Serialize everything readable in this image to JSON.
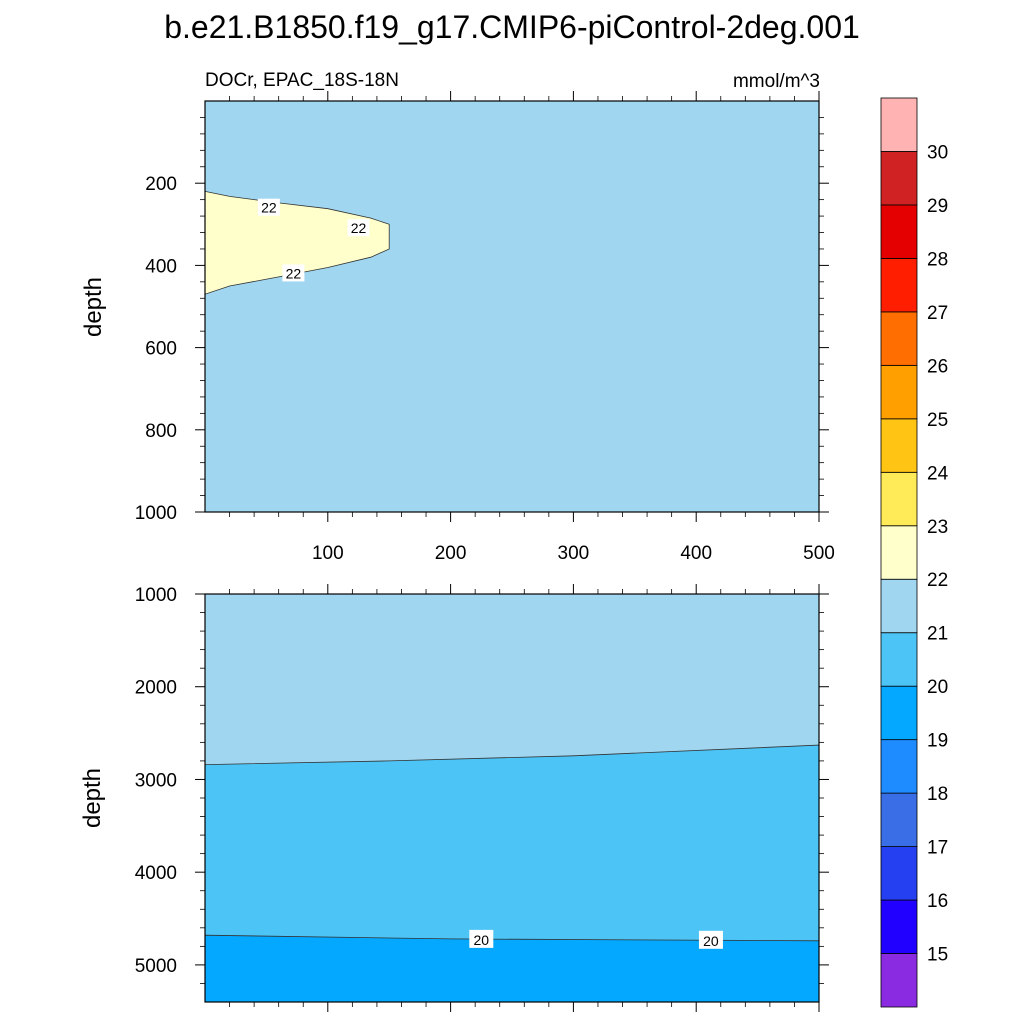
{
  "title": "b.e21.B1850.f19_g17.CMIP6-piControl-2deg.001",
  "colors": {
    "background": "#ffffff",
    "axis": "#000000"
  },
  "chart_data": [
    {
      "type": "contour",
      "panel": "upper",
      "subtitle_left": "DOCr, EPAC_18S-18N",
      "subtitle_right": "mmol/m^3",
      "xlabel": "",
      "ylabel": "depth",
      "xlim": [
        0,
        500
      ],
      "ylim": [
        1000,
        0
      ],
      "x_ticks": [
        100,
        200,
        300,
        400,
        500
      ],
      "x_tick_labels": [
        "100",
        "200",
        "300",
        "400",
        "500"
      ],
      "y_ticks": [
        200,
        400,
        600,
        800,
        1000
      ],
      "y_tick_labels": [
        "200",
        "400",
        "600",
        "800",
        "1000"
      ],
      "background_fill_range": [
        21,
        22
      ],
      "regions": [
        {
          "range": [
            22,
            23
          ],
          "description": "warm tongue near western edge",
          "boundary_top": [
            [
              0,
              220
            ],
            [
              20,
              232
            ],
            [
              60,
              248
            ],
            [
              100,
              262
            ],
            [
              135,
              285
            ],
            [
              150,
              300
            ]
          ],
          "boundary_bottom": [
            [
              150,
              360
            ],
            [
              135,
              380
            ],
            [
              100,
              405
            ],
            [
              60,
              428
            ],
            [
              20,
              450
            ],
            [
              0,
              470
            ]
          ]
        }
      ],
      "contour_labels": [
        {
          "text": "22",
          "x": 52,
          "y": 262
        },
        {
          "text": "22",
          "x": 125,
          "y": 312
        },
        {
          "text": "22",
          "x": 72,
          "y": 422
        }
      ]
    },
    {
      "type": "contour",
      "panel": "lower",
      "xlabel": "",
      "ylabel": "depth",
      "xlim": [
        0,
        500
      ],
      "ylim": [
        5400,
        1000
      ],
      "y_ticks": [
        1000,
        2000,
        3000,
        4000,
        5000
      ],
      "y_tick_labels": [
        "1000",
        "2000",
        "3000",
        "4000",
        "5000"
      ],
      "layers": [
        {
          "range": [
            21,
            22
          ],
          "top": [
            [
              0,
              1000
            ],
            [
              500,
              1000
            ]
          ]
        },
        {
          "range": [
            20,
            21
          ],
          "top": [
            [
              0,
              2840
            ],
            [
              150,
              2800
            ],
            [
              300,
              2745
            ],
            [
              500,
              2630
            ]
          ]
        },
        {
          "range": [
            19,
            20
          ],
          "top": [
            [
              0,
              4680
            ],
            [
              200,
              4720
            ],
            [
              350,
              4730
            ],
            [
              500,
              4740
            ]
          ]
        }
      ],
      "contour_labels": [
        {
          "text": "20",
          "x": 225,
          "y": 4730
        },
        {
          "text": "20",
          "x": 412,
          "y": 4740
        }
      ]
    },
    {
      "type": "colorbar",
      "levels": [
        15,
        16,
        17,
        18,
        19,
        20,
        21,
        22,
        23,
        24,
        25,
        26,
        27,
        28,
        29,
        30
      ],
      "colors": [
        "#8a2be2",
        "#2200ff",
        "#2540f0",
        "#3a6ee6",
        "#1e8cff",
        "#04a8ff",
        "#4cc4f5",
        "#a0d6f0",
        "#ffffcc",
        "#ffea57",
        "#ffc414",
        "#ffa000",
        "#ff6e00",
        "#ff1e00",
        "#e40000",
        "#d02222",
        "#ffb3b3"
      ]
    }
  ]
}
